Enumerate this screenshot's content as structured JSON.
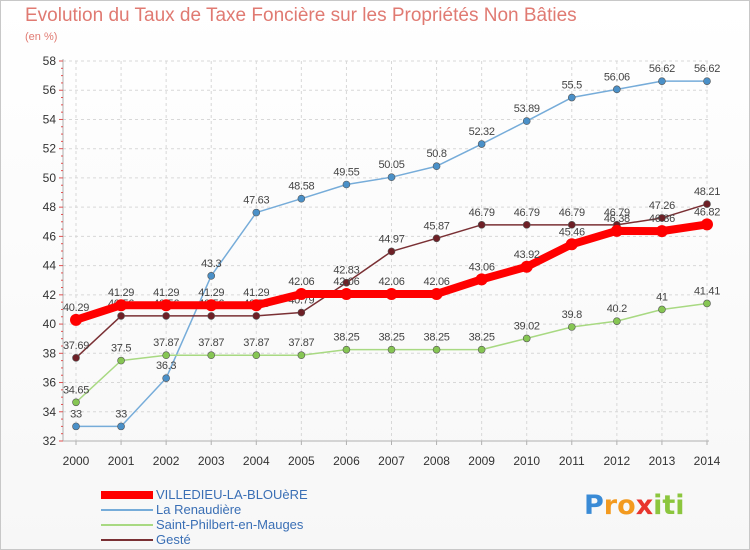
{
  "chart_data": {
    "type": "line",
    "title": "Evolution du Taux de Taxe Foncière sur les Propriétés Non Bâties",
    "ylabel": "(en %)",
    "xlabel": "",
    "x": [
      "2000",
      "2001",
      "2002",
      "2003",
      "2004",
      "2005",
      "2006",
      "2007",
      "2008",
      "2009",
      "2010",
      "2011",
      "2012",
      "2013",
      "2014"
    ],
    "ylim": [
      32,
      58
    ],
    "yticks": [
      32,
      34,
      36,
      38,
      40,
      42,
      44,
      46,
      48,
      50,
      52,
      54,
      56,
      58
    ],
    "grid": true,
    "legend_position": "bottom-left",
    "series": [
      {
        "name": "La Renaudière",
        "color": "#76acd9",
        "point_color": "#4a90c8",
        "values": [
          33,
          33,
          36.3,
          43.3,
          47.63,
          48.58,
          49.55,
          50.05,
          50.8,
          52.32,
          53.89,
          55.5,
          56.06,
          56.62,
          56.62
        ],
        "labels": [
          "33",
          "33",
          "36.3",
          "43.3",
          "47.63",
          "48.58",
          "49.55",
          "50.05",
          "50.8",
          "52.32",
          "53.89",
          "55.5",
          "56.06",
          "56.62",
          "56.62"
        ]
      },
      {
        "name": "Saint-Philbert-en-Mauges",
        "color": "#a8d982",
        "point_color": "#86c653",
        "values": [
          34.65,
          37.5,
          37.87,
          37.87,
          37.87,
          37.87,
          38.25,
          38.25,
          38.25,
          38.25,
          39.02,
          39.8,
          40.2,
          41,
          41.41
        ],
        "labels": [
          "34.65",
          "37.5",
          "37.87",
          "37.87",
          "37.87",
          "37.87",
          "38.25",
          "38.25",
          "38.25",
          "38.25",
          "39.02",
          "39.8",
          "40.2",
          "41",
          "41.41"
        ]
      },
      {
        "name": "Gesté",
        "color": "#7a3034",
        "point_color": "#6e2026",
        "values": [
          37.69,
          40.56,
          40.56,
          40.56,
          40.56,
          40.79,
          42.83,
          44.97,
          45.87,
          46.79,
          46.79,
          46.79,
          46.79,
          47.26,
          48.21
        ],
        "labels": [
          "37.69",
          "40.56",
          "40.56",
          "40.56",
          "40.56",
          "40.79",
          "42.83",
          "44.97",
          "45.87",
          "46.79",
          "46.79",
          "46.79",
          "46.79",
          "47.26",
          "48.21"
        ]
      },
      {
        "name": "VILLEDIEU-LA-BLOUèRE",
        "color": "#ff0000",
        "point_color": "#ff0000",
        "values": [
          40.29,
          41.29,
          41.29,
          41.29,
          41.29,
          42.06,
          42.06,
          42.06,
          42.06,
          43.06,
          43.92,
          45.46,
          46.38,
          46.36,
          46.82
        ],
        "labels": [
          "40.29",
          "41.29",
          "41.29",
          "41.29",
          "41.29",
          "42.06",
          "42.06",
          "42.06",
          "42.06",
          "43.06",
          "43.92",
          "45.46",
          "46.38",
          "46.36",
          "46.82"
        ]
      }
    ]
  },
  "legend": [
    {
      "label": "VILLEDIEU-LA-BLOUèRE",
      "color": "#ff0000"
    },
    {
      "label": "La Renaudière",
      "color": "#76acd9"
    },
    {
      "label": "Saint-Philbert-en-Mauges",
      "color": "#a8d982"
    },
    {
      "label": "Gesté",
      "color": "#7a3034"
    }
  ],
  "logo": {
    "letters": [
      "P",
      "r",
      "o",
      "x",
      "i",
      "t",
      "i"
    ],
    "colors": [
      "#3a8bd6",
      "#f39a1f",
      "#f39a1f",
      "#e8352e",
      "#8cc63e",
      "#8cc63e",
      "#8cc63e"
    ]
  }
}
